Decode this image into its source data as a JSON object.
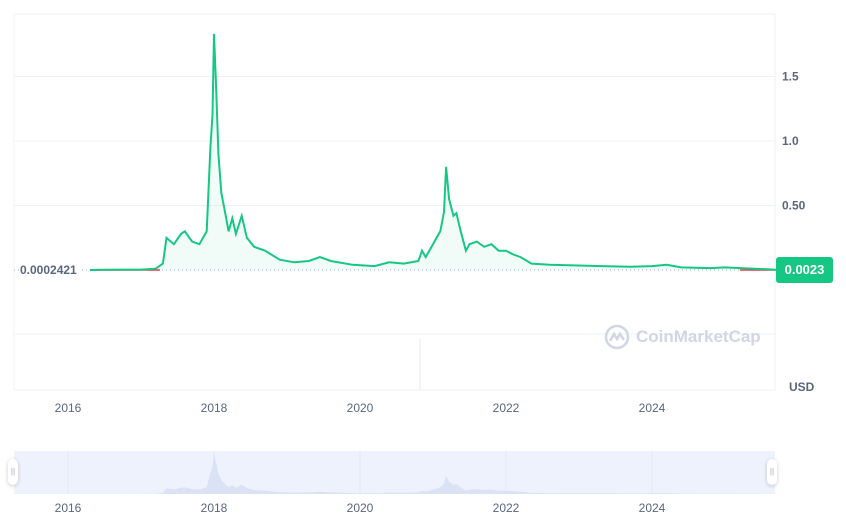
{
  "chart_data": {
    "type": "area",
    "title": "",
    "xlabel": "",
    "ylabel": "",
    "currency_label": "USD",
    "y_ticks": [
      "0.50",
      "1.0",
      "1.5"
    ],
    "y_tick_values": [
      0.5,
      1.0,
      1.5
    ],
    "x_ticks": [
      "2016",
      "2018",
      "2020",
      "2022",
      "2024"
    ],
    "x_tick_values": [
      2016,
      2018,
      2020,
      2022,
      2024
    ],
    "xlim": [
      2015.25,
      2025.7
    ],
    "ylim": [
      0,
      1.95
    ],
    "grid": true,
    "start_price_label": "0.0002421",
    "current_price_label": "0.0023",
    "colors": {
      "up": "#16c784",
      "down": "#ea3943",
      "badge": "#16c784",
      "navigator": "#eef2fd"
    },
    "watermark": "CoinMarketCap",
    "series": [
      {
        "points": [
          [
            2016.3,
            0.0002
          ],
          [
            2016.5,
            0.002
          ],
          [
            2017.0,
            0.003
          ],
          [
            2017.2,
            0.01
          ],
          [
            2017.3,
            0.05
          ],
          [
            2017.35,
            0.25
          ],
          [
            2017.45,
            0.2
          ],
          [
            2017.55,
            0.28
          ],
          [
            2017.6,
            0.3
          ],
          [
            2017.7,
            0.22
          ],
          [
            2017.8,
            0.2
          ],
          [
            2017.9,
            0.3
          ],
          [
            2017.95,
            0.95
          ],
          [
            2017.98,
            1.2
          ],
          [
            2018.0,
            1.83
          ],
          [
            2018.03,
            1.4
          ],
          [
            2018.06,
            0.9
          ],
          [
            2018.1,
            0.6
          ],
          [
            2018.15,
            0.45
          ],
          [
            2018.2,
            0.3
          ],
          [
            2018.25,
            0.4
          ],
          [
            2018.3,
            0.28
          ],
          [
            2018.38,
            0.42
          ],
          [
            2018.45,
            0.25
          ],
          [
            2018.55,
            0.18
          ],
          [
            2018.7,
            0.15
          ],
          [
            2018.9,
            0.08
          ],
          [
            2019.1,
            0.06
          ],
          [
            2019.3,
            0.07
          ],
          [
            2019.45,
            0.1
          ],
          [
            2019.6,
            0.07
          ],
          [
            2019.9,
            0.04
          ],
          [
            2020.2,
            0.03
          ],
          [
            2020.4,
            0.06
          ],
          [
            2020.6,
            0.05
          ],
          [
            2020.8,
            0.07
          ],
          [
            2020.85,
            0.15
          ],
          [
            2020.9,
            0.1
          ],
          [
            2021.0,
            0.2
          ],
          [
            2021.05,
            0.25
          ],
          [
            2021.1,
            0.3
          ],
          [
            2021.15,
            0.45
          ],
          [
            2021.18,
            0.8
          ],
          [
            2021.22,
            0.55
          ],
          [
            2021.28,
            0.42
          ],
          [
            2021.32,
            0.44
          ],
          [
            2021.38,
            0.3
          ],
          [
            2021.45,
            0.15
          ],
          [
            2021.5,
            0.2
          ],
          [
            2021.6,
            0.22
          ],
          [
            2021.7,
            0.18
          ],
          [
            2021.8,
            0.2
          ],
          [
            2021.9,
            0.15
          ],
          [
            2022.0,
            0.15
          ],
          [
            2022.1,
            0.12
          ],
          [
            2022.2,
            0.1
          ],
          [
            2022.35,
            0.05
          ],
          [
            2022.6,
            0.04
          ],
          [
            2023.0,
            0.035
          ],
          [
            2023.3,
            0.03
          ],
          [
            2023.7,
            0.025
          ],
          [
            2024.0,
            0.03
          ],
          [
            2024.2,
            0.04
          ],
          [
            2024.4,
            0.02
          ],
          [
            2024.8,
            0.015
          ],
          [
            2025.0,
            0.02
          ],
          [
            2025.4,
            0.01
          ],
          [
            2025.7,
            0.0023
          ]
        ]
      }
    ]
  }
}
